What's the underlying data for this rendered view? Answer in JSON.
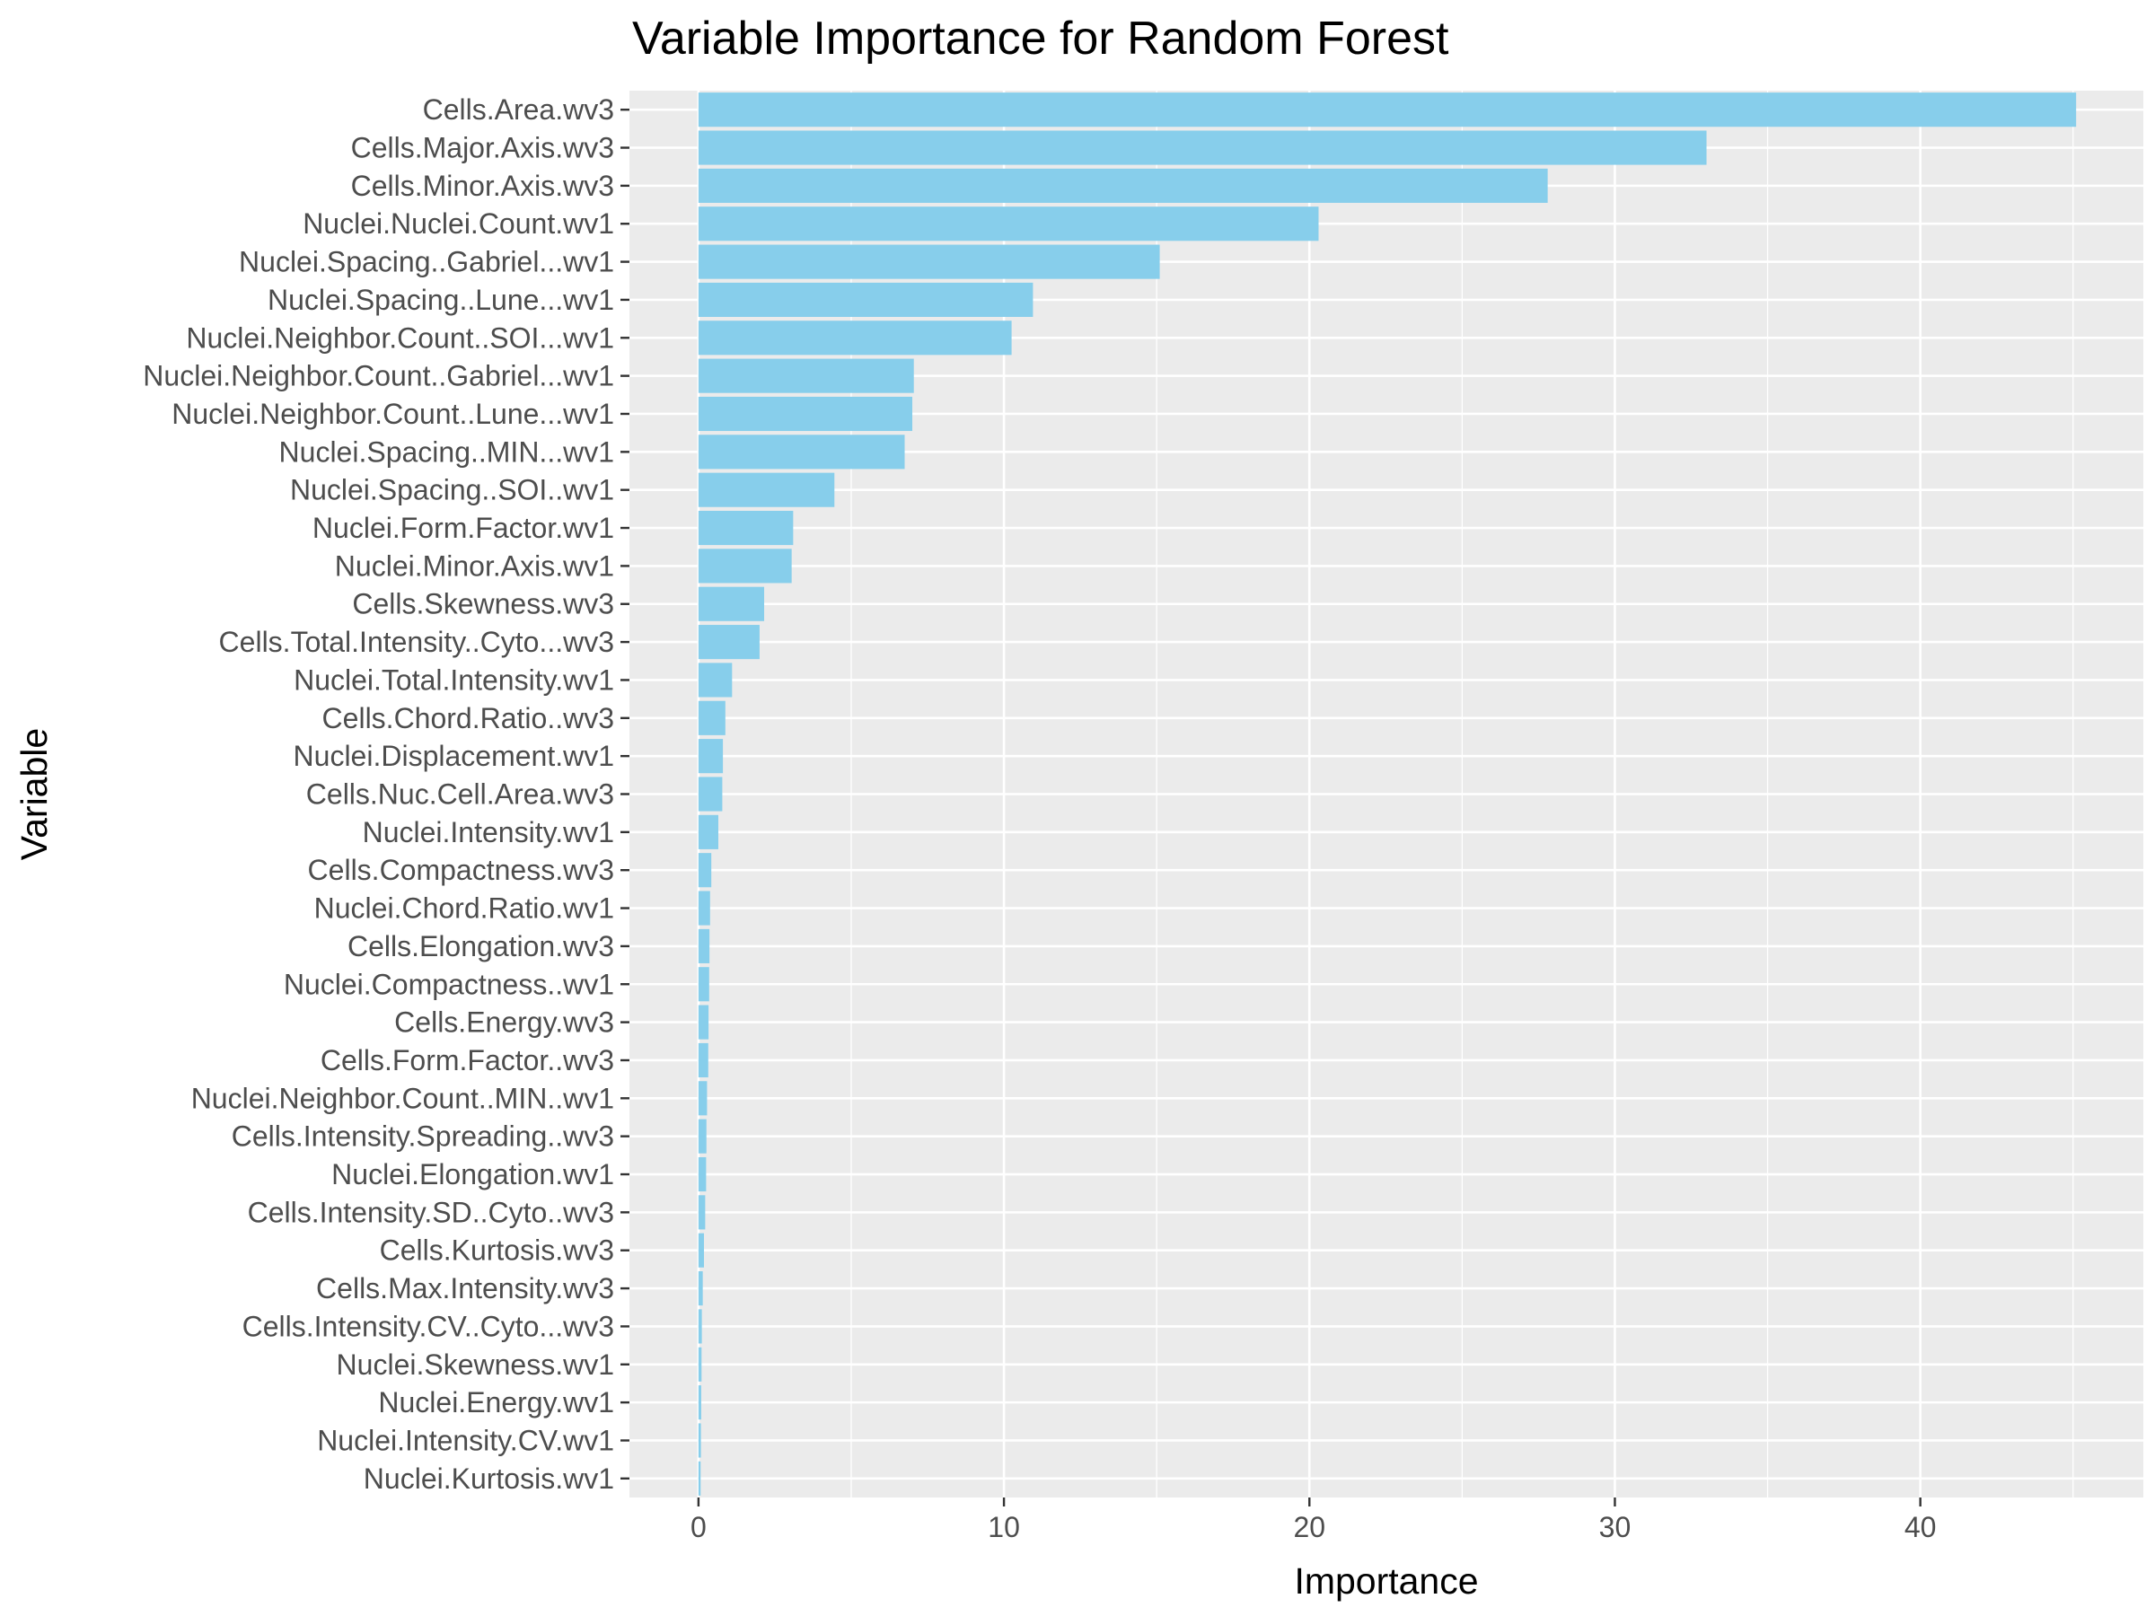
{
  "chart_data": {
    "type": "bar",
    "orientation": "horizontal",
    "title": "Variable Importance for Random Forest",
    "xlabel": "Importance",
    "ylabel": "Variable",
    "xlim": [
      -2.26,
      47.3
    ],
    "xticks": [
      0,
      10,
      20,
      30,
      40
    ],
    "grid": true,
    "legend": "none",
    "bar_color": "#87CEEB",
    "panel_color": "#EBEBEB",
    "categories": [
      "Cells.Area.wv3",
      "Cells.Major.Axis.wv3",
      "Cells.Minor.Axis.wv3",
      "Nuclei.Nuclei.Count.wv1",
      "Nuclei.Spacing..Gabriel...wv1",
      "Nuclei.Spacing..Lune...wv1",
      "Nuclei.Neighbor.Count..SOI...wv1",
      "Nuclei.Neighbor.Count..Gabriel...wv1",
      "Nuclei.Neighbor.Count..Lune...wv1",
      "Nuclei.Spacing..MIN...wv1",
      "Nuclei.Spacing..SOI..wv1",
      "Nuclei.Form.Factor.wv1",
      "Nuclei.Minor.Axis.wv1",
      "Cells.Skewness.wv3",
      "Cells.Total.Intensity..Cyto...wv3",
      "Nuclei.Total.Intensity.wv1",
      "Cells.Chord.Ratio..wv3",
      "Nuclei.Displacement.wv1",
      "Cells.Nuc.Cell.Area.wv3",
      "Nuclei.Intensity.wv1",
      "Cells.Compactness.wv3",
      "Nuclei.Chord.Ratio.wv1",
      "Cells.Elongation.wv3",
      "Nuclei.Compactness..wv1",
      "Cells.Energy.wv3",
      "Cells.Form.Factor..wv3",
      "Nuclei.Neighbor.Count..MIN..wv1",
      "Cells.Intensity.Spreading..wv3",
      "Nuclei.Elongation.wv1",
      "Cells.Intensity.SD..Cyto..wv3",
      "Cells.Kurtosis.wv3",
      "Cells.Max.Intensity.wv3",
      "Cells.Intensity.CV..Cyto...wv3",
      "Nuclei.Skewness.wv1",
      "Nuclei.Energy.wv1",
      "Nuclei.Intensity.CV.wv1",
      "Nuclei.Kurtosis.wv1"
    ],
    "values": [
      45.1,
      33.0,
      27.8,
      20.3,
      15.1,
      10.95,
      10.25,
      7.05,
      7.0,
      6.75,
      4.45,
      3.1,
      3.05,
      2.15,
      2.0,
      1.1,
      0.88,
      0.8,
      0.78,
      0.65,
      0.42,
      0.38,
      0.36,
      0.35,
      0.33,
      0.32,
      0.28,
      0.26,
      0.25,
      0.22,
      0.18,
      0.14,
      0.11,
      0.1,
      0.09,
      0.08,
      0.07
    ]
  }
}
